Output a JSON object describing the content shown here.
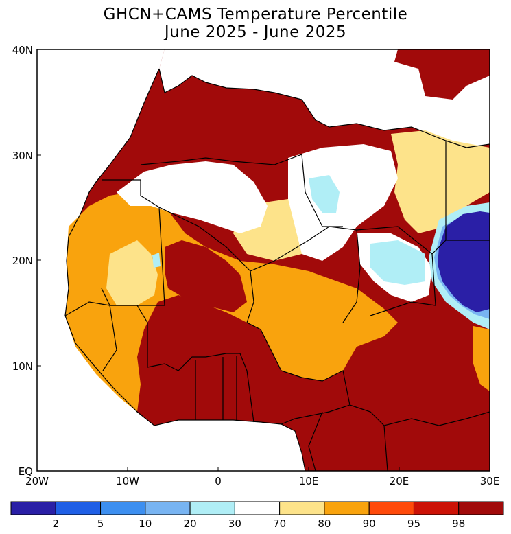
{
  "title": "GHCN+CAMS Temperature Percentile",
  "subtitle": "June 2025 - June 2025",
  "map": {
    "lat_labels": [
      "40N",
      "30N",
      "20N",
      "10N",
      "EQ"
    ],
    "lon_labels": [
      "20W",
      "10W",
      "0",
      "10E",
      "20E",
      "30E"
    ],
    "lat_range": [
      0,
      40
    ],
    "lon_range": [
      -20,
      30
    ],
    "region": "North Africa and Mediterranean"
  },
  "legend": {
    "colors": [
      "#2a1fa6",
      "#1f5fe6",
      "#3d8ff0",
      "#78b4f2",
      "#b0eef6",
      "#ffffff",
      "#fde38a",
      "#f9a30d",
      "#ff4a0a",
      "#cc1206",
      "#a10a0a"
    ],
    "labels": [
      "2",
      "5",
      "10",
      "20",
      "30",
      "70",
      "80",
      "90",
      "95",
      "98"
    ]
  },
  "colors": {
    "extreme_warm": "#a10a0a",
    "warm_95": "#ff4a0a",
    "warm_90": "#f9a30d",
    "warm_80": "#fde38a",
    "near_normal": "#ffffff",
    "cool_30": "#b0eef6",
    "extreme_cool": "#2a1fa6"
  }
}
